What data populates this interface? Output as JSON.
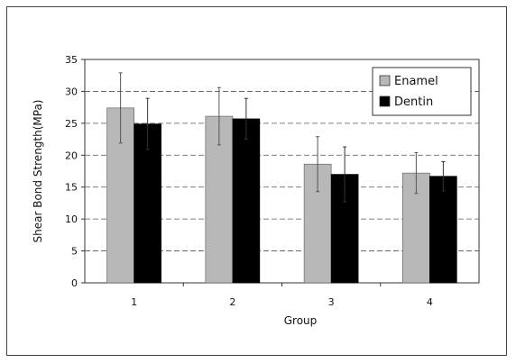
{
  "chart_data": {
    "type": "bar",
    "title": "",
    "xlabel": "Group",
    "ylabel": "Shear Bond Strength(MPa)",
    "categories": [
      "1",
      "2",
      "3",
      "4"
    ],
    "series": [
      {
        "name": "Enamel",
        "values": [
          27.4,
          26.1,
          18.6,
          17.2
        ],
        "errors": [
          5.5,
          4.5,
          4.3,
          3.2
        ]
      },
      {
        "name": "Dentin",
        "values": [
          24.9,
          25.7,
          17.0,
          16.7
        ],
        "errors": [
          4.0,
          3.2,
          4.3,
          2.3
        ]
      }
    ],
    "ylim": [
      0,
      35
    ],
    "yticks": [
      0,
      5,
      10,
      15,
      20,
      25,
      30,
      35
    ],
    "grid": true,
    "legend_position": "top-right",
    "colors": {
      "Enamel": "#b8b8b8",
      "Dentin": "#000000"
    }
  }
}
